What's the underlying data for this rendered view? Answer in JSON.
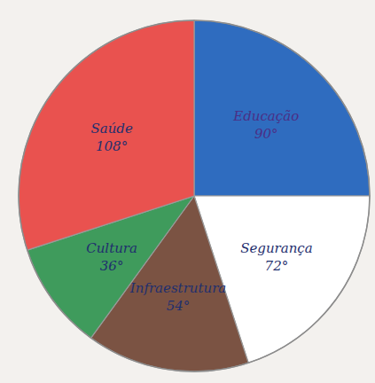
{
  "chart_data": {
    "type": "pie",
    "categories": [
      "Educação",
      "Segurança",
      "Infraestrutura",
      "Cultura",
      "Saúde"
    ],
    "values": [
      90,
      72,
      54,
      36,
      108
    ],
    "value_labels": [
      "90°",
      "72°",
      "54°",
      "36°",
      "108°"
    ],
    "colors": [
      "#2f6cbf",
      "#ffffff",
      "#7b5343",
      "#3f9b5c",
      "#e9524f"
    ],
    "data_labels": true
  }
}
